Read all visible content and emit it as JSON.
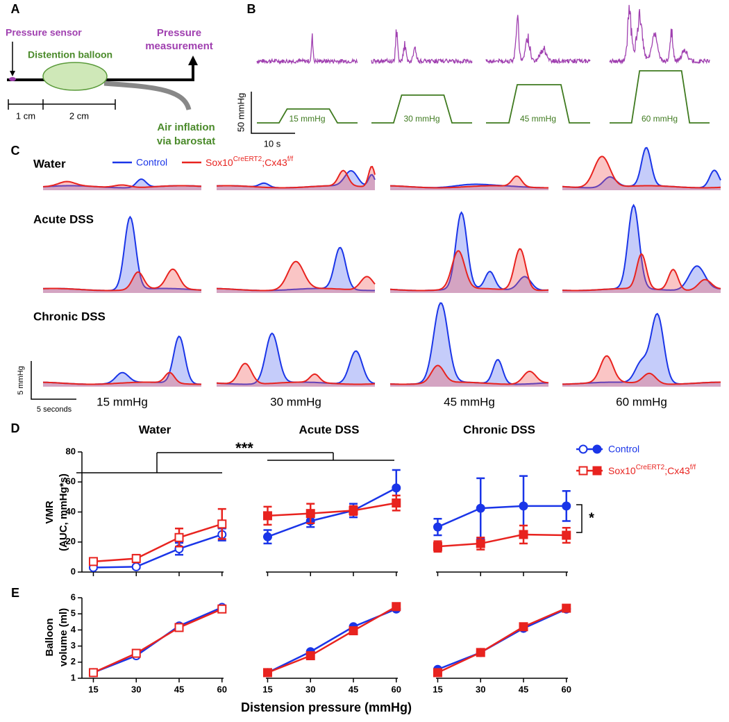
{
  "panel_labels": [
    "A",
    "B",
    "C",
    "D",
    "E"
  ],
  "panel_a": {
    "sensor": "Pressure sensor",
    "balloon": "Distention balloon",
    "measurement": [
      "Pressure",
      "measurement"
    ],
    "dim1": "1 cm",
    "dim2": "2 cm",
    "inflation": [
      "Air inflation",
      "via barostat"
    ]
  },
  "panel_b": {
    "pressures": [
      "15 mmHg",
      "30 mmHg",
      "45 mmHg",
      "60 mmHg"
    ],
    "scale_y": "50 mmHg",
    "scale_x": "10 s"
  },
  "panel_c": {
    "rows": [
      "Water",
      "Acute DSS",
      "Chronic DSS"
    ],
    "legend": [
      "Control",
      [
        "Sox10",
        "CreERT2",
        ";Cx43",
        "f/f"
      ]
    ],
    "pressures": [
      "15 mmHg",
      "30 mmHg",
      "45 mmHg",
      "60 mmHg"
    ],
    "scale_y": "5 mmHg",
    "scale_x": "5 seconds"
  },
  "panel_d": {
    "ylabel": [
      "VMR",
      "(AUC, mmHg*s)"
    ],
    "significance": [
      "***",
      "*"
    ]
  },
  "panel_e": {
    "ylabel": [
      "Balloon",
      "volume (ml)"
    ],
    "xlabel": "Distension pressure (mmHg)"
  },
  "chart_data": [
    {
      "type": "line",
      "title": "Water",
      "marker_fill": "open",
      "x": [
        15,
        30,
        45,
        60
      ],
      "xlim": [
        11,
        62
      ],
      "ylim": [
        0,
        80
      ],
      "yticks": [
        0,
        20,
        40,
        60,
        80
      ],
      "series": [
        {
          "name": "Control",
          "color": "#1a35e8",
          "marker": "circle",
          "values": [
            3,
            3.5,
            15.5,
            25
          ],
          "errors": [
            1,
            1,
            4,
            4
          ]
        },
        {
          "name": [
            "Sox10",
            "CreERT2",
            ";Cx43",
            "f/f"
          ],
          "color": "#e8231f",
          "marker": "square",
          "values": [
            7,
            9,
            23,
            32
          ],
          "errors": [
            2,
            2.5,
            6,
            10
          ]
        }
      ]
    },
    {
      "type": "line",
      "title": "Acute DSS",
      "marker_fill": "filled",
      "x": [
        15,
        30,
        45,
        60
      ],
      "xlim": [
        11,
        62
      ],
      "ylim": [
        0,
        80
      ],
      "series": [
        {
          "color": "#1a35e8",
          "marker": "circle",
          "values": [
            23.5,
            34,
            41,
            56
          ],
          "errors": [
            4.5,
            4,
            4.5,
            12
          ]
        },
        {
          "color": "#e8231f",
          "marker": "square",
          "values": [
            37.5,
            39,
            41,
            46
          ],
          "errors": [
            6,
            6.5,
            3,
            5
          ]
        }
      ]
    },
    {
      "type": "line",
      "title": "Chronic DSS",
      "marker_fill": "filled",
      "x": [
        15,
        30,
        45,
        60
      ],
      "xlim": [
        11,
        62
      ],
      "ylim": [
        0,
        80
      ],
      "series": [
        {
          "color": "#1a35e8",
          "marker": "circle",
          "values": [
            30,
            42.5,
            44,
            44
          ],
          "errors": [
            5.5,
            20,
            20,
            10
          ]
        },
        {
          "color": "#e8231f",
          "marker": "square",
          "values": [
            17,
            19,
            25,
            24.5
          ],
          "errors": [
            3.5,
            4,
            6,
            5
          ]
        }
      ]
    },
    {
      "type": "line",
      "marker_fill": "open",
      "x": [
        15,
        30,
        45,
        60
      ],
      "xlim": [
        11,
        62
      ],
      "ylim": [
        1,
        6
      ],
      "yticks": [
        1,
        2,
        3,
        4,
        5,
        6
      ],
      "xticks": [
        15,
        30,
        45,
        60
      ],
      "series": [
        {
          "color": "#1a35e8",
          "marker": "circle",
          "values": [
            1.35,
            2.4,
            4.25,
            5.4
          ]
        },
        {
          "color": "#e8231f",
          "marker": "square",
          "values": [
            1.35,
            2.55,
            4.15,
            5.3
          ]
        }
      ]
    },
    {
      "type": "line",
      "marker_fill": "filled",
      "x": [
        15,
        30,
        45,
        60
      ],
      "xlim": [
        11,
        62
      ],
      "ylim": [
        1,
        6
      ],
      "xticks": [
        15,
        30,
        45,
        60
      ],
      "series": [
        {
          "color": "#1a35e8",
          "marker": "circle",
          "values": [
            1.35,
            2.65,
            4.2,
            5.3
          ]
        },
        {
          "color": "#e8231f",
          "marker": "square",
          "values": [
            1.35,
            2.4,
            3.95,
            5.45
          ]
        }
      ]
    },
    {
      "type": "line",
      "marker_fill": "filled",
      "x": [
        15,
        30,
        45,
        60
      ],
      "xlim": [
        11,
        62
      ],
      "ylim": [
        1,
        6
      ],
      "xticks": [
        15,
        30,
        45,
        60
      ],
      "series": [
        {
          "color": "#1a35e8",
          "marker": "circle",
          "values": [
            1.55,
            2.6,
            4.1,
            5.3
          ]
        },
        {
          "color": "#e8231f",
          "marker": "square",
          "values": [
            1.35,
            2.6,
            4.2,
            5.35
          ]
        }
      ]
    }
  ]
}
